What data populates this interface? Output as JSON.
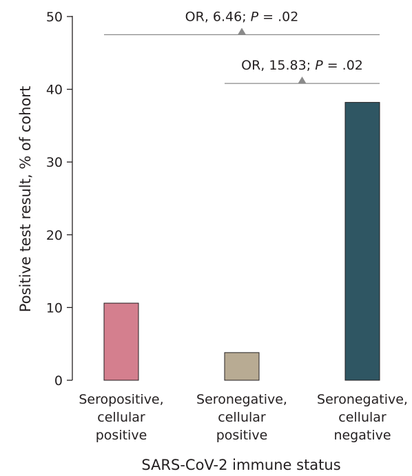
{
  "chart_data": {
    "type": "bar",
    "categories": [
      [
        "Seropositive,",
        "cellular",
        "positive"
      ],
      [
        "Seronegative,",
        "cellular",
        "positive"
      ],
      [
        "Seronegative,",
        "cellular",
        "negative"
      ]
    ],
    "values": [
      10.6,
      3.8,
      38.2
    ],
    "bar_colors": [
      "#d47f8e",
      "#b8ab93",
      "#2f5663"
    ],
    "xlabel": "SARS-CoV-2 immune status",
    "ylabel": "Positive test result, % of cohort",
    "ylim": [
      0,
      50
    ],
    "yticks": [
      0,
      10,
      20,
      30,
      40,
      50
    ],
    "grid": false,
    "annotations": [
      {
        "from": 0,
        "to": 2,
        "level": 47.5,
        "prefix": "OR, 6.46; ",
        "p_label": "P",
        "suffix": " = .02"
      },
      {
        "from": 1,
        "to": 2,
        "level": 40.8,
        "prefix": "OR, 15.83; ",
        "p_label": "P",
        "suffix": " = .02"
      }
    ]
  }
}
